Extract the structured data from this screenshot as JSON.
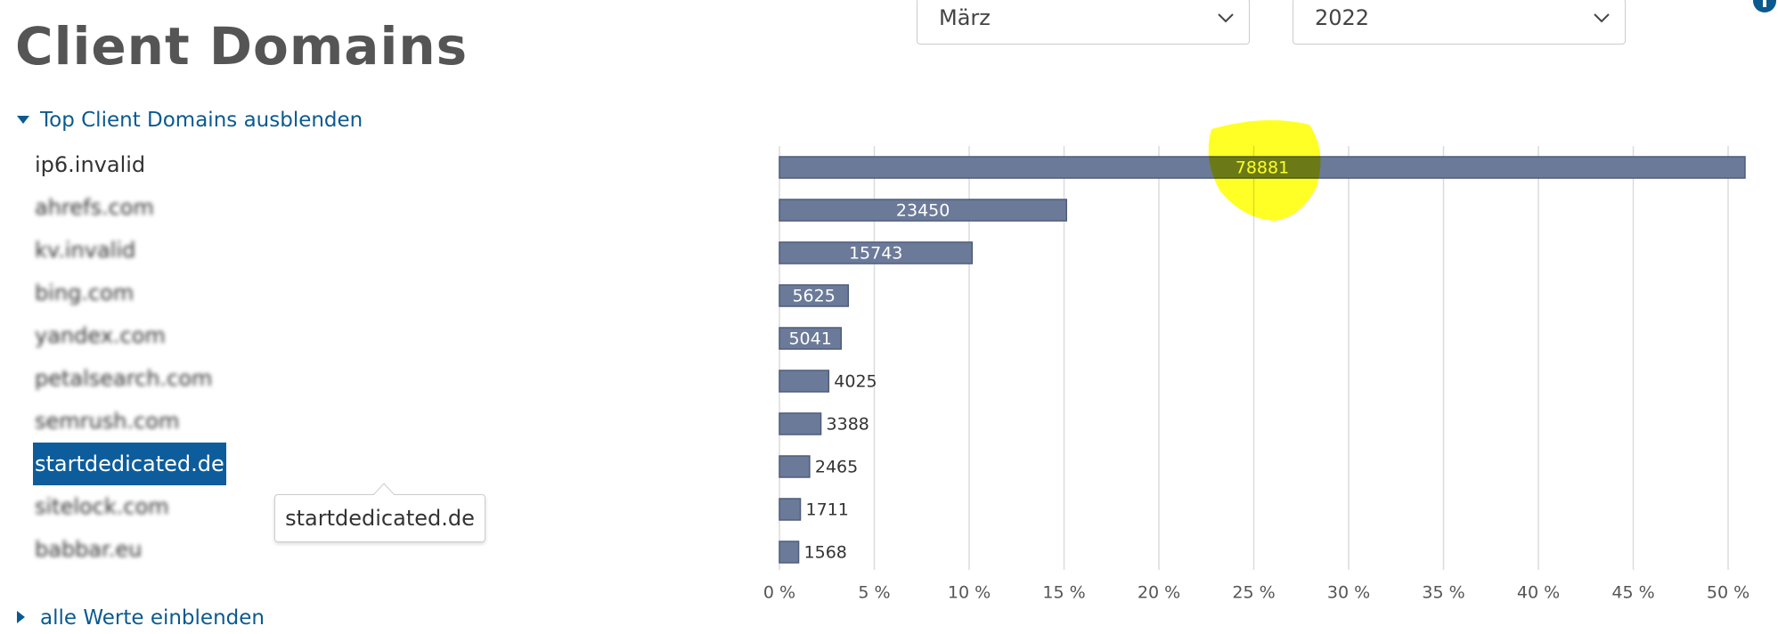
{
  "header": {
    "title": "Client Domains"
  },
  "filters": {
    "month": "März",
    "year": "2022"
  },
  "toggle_top": "Top Client Domains ausblenden",
  "show_all": "alle Werte einblenden",
  "chart_data": {
    "type": "bar",
    "orientation": "horizontal",
    "categories": [
      "ip6.invalid",
      "ahrefs.com",
      "kv.invalid",
      "bing.com",
      "yandex.com",
      "petalsearch.com",
      "semrush.com",
      "startdedicated.de",
      "sitelock.com",
      "babbar.eu"
    ],
    "values": [
      78881,
      23450,
      15743,
      5625,
      5041,
      4025,
      3388,
      2465,
      1711,
      1568
    ],
    "color": "#6b7a99",
    "selected": 7,
    "xlim": [
      0,
      79500
    ],
    "xticks": [
      {
        "value": 0,
        "label": "0 %"
      },
      {
        "value": 7750,
        "label": "5 %"
      },
      {
        "value": 15500,
        "label": "10 %"
      },
      {
        "value": 23250,
        "label": "15 %"
      },
      {
        "value": 31000,
        "label": "20 %"
      },
      {
        "value": 38750,
        "label": "25 %"
      },
      {
        "value": 46500,
        "label": "30 %"
      },
      {
        "value": 54250,
        "label": "35 %"
      },
      {
        "value": 62000,
        "label": "40 %"
      },
      {
        "value": 69750,
        "label": "45 %"
      },
      {
        "value": 77500,
        "label": "50 %"
      }
    ],
    "grid": true
  }
}
